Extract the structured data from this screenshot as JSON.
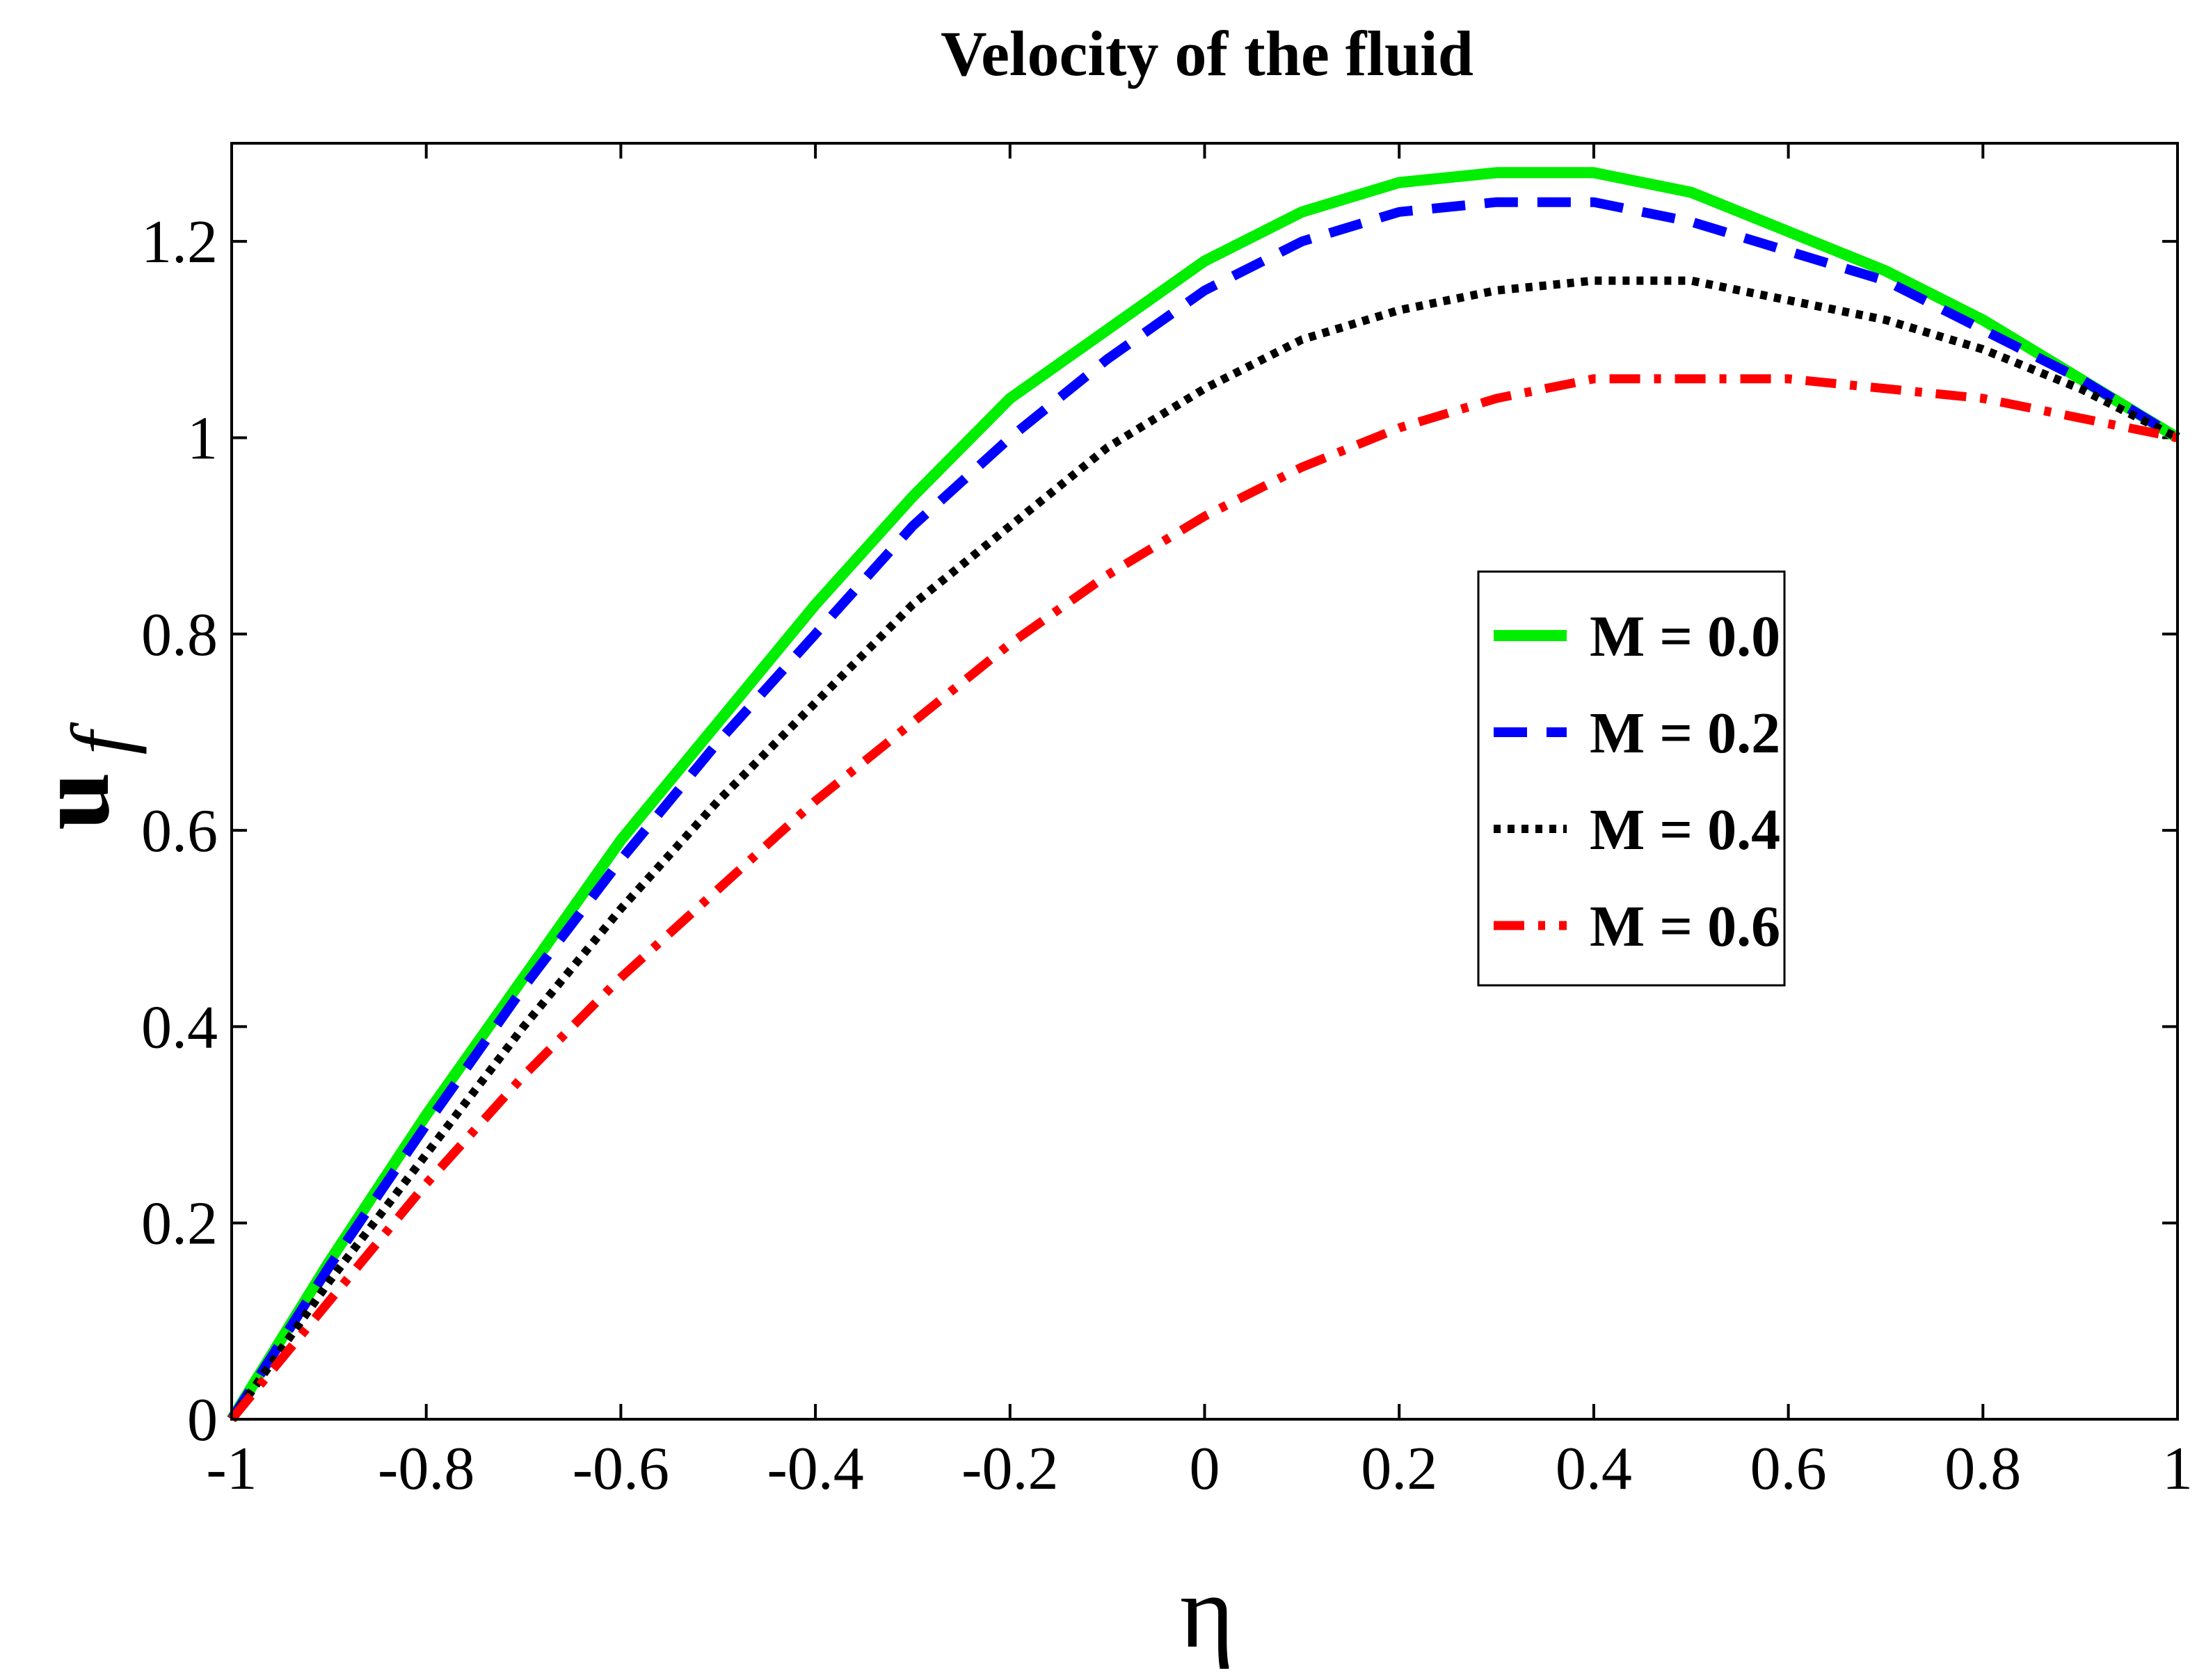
{
  "chart_data": {
    "type": "line",
    "title": "Velocity of the fluid",
    "xlabel": "η",
    "ylabel_main": "u",
    "ylabel_sub": "f",
    "xlim": [
      -1,
      1
    ],
    "ylim": [
      0,
      1.3
    ],
    "xticks": [
      -1,
      -0.8,
      -0.6,
      -0.4,
      -0.2,
      0,
      0.2,
      0.4,
      0.6,
      0.8,
      1
    ],
    "xtick_labels": [
      "-1",
      "-0.8",
      "-0.6",
      "-0.4",
      "-0.2",
      "0",
      "0.2",
      "0.4",
      "0.6",
      "0.8",
      "1"
    ],
    "yticks": [
      0,
      0.2,
      0.4,
      0.6,
      0.8,
      1,
      1.2
    ],
    "ytick_labels": [
      "0",
      "0.2",
      "0.4",
      "0.6",
      "0.8",
      "1",
      "1.2"
    ],
    "grid": false,
    "legend_position": "center-right",
    "x": [
      -1,
      -0.9,
      -0.8,
      -0.7,
      -0.6,
      -0.5,
      -0.4,
      -0.3,
      -0.2,
      -0.1,
      0,
      0.1,
      0.2,
      0.3,
      0.4,
      0.5,
      0.6,
      0.7,
      0.8,
      0.9,
      1
    ],
    "series": [
      {
        "name": "M = 0.0",
        "color": "#00ee00",
        "dash": "solid",
        "values": [
          0,
          0.16,
          0.31,
          0.45,
          0.59,
          0.71,
          0.83,
          0.94,
          1.04,
          1.11,
          1.18,
          1.23,
          1.26,
          1.27,
          1.27,
          1.25,
          1.21,
          1.17,
          1.12,
          1.06,
          1.0
        ]
      },
      {
        "name": "M = 0.2",
        "color": "#0000ff",
        "dash": "dashed",
        "values": [
          0,
          0.155,
          0.3,
          0.44,
          0.57,
          0.69,
          0.8,
          0.91,
          1.0,
          1.08,
          1.15,
          1.2,
          1.23,
          1.24,
          1.24,
          1.22,
          1.19,
          1.16,
          1.11,
          1.06,
          1.0
        ]
      },
      {
        "name": "M = 0.4",
        "color": "#000000",
        "dash": "dotted",
        "values": [
          0,
          0.14,
          0.27,
          0.4,
          0.52,
          0.63,
          0.73,
          0.83,
          0.91,
          0.99,
          1.05,
          1.1,
          1.13,
          1.15,
          1.16,
          1.16,
          1.14,
          1.12,
          1.09,
          1.05,
          1.0
        ]
      },
      {
        "name": "M = 0.6",
        "color": "#ff0000",
        "dash": "dashdot",
        "values": [
          0,
          0.12,
          0.24,
          0.35,
          0.45,
          0.54,
          0.63,
          0.71,
          0.79,
          0.86,
          0.92,
          0.97,
          1.01,
          1.04,
          1.06,
          1.06,
          1.06,
          1.05,
          1.04,
          1.02,
          1.0
        ]
      }
    ]
  }
}
